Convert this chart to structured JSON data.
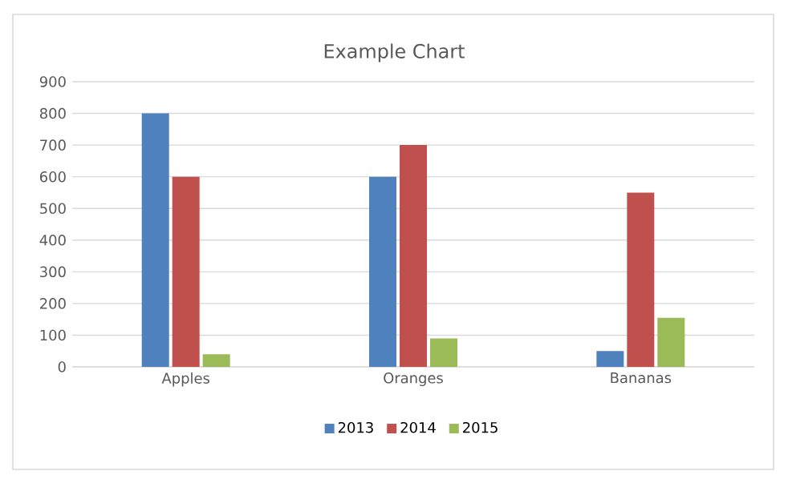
{
  "chart_data": {
    "type": "bar",
    "title": "Example Chart",
    "categories": [
      "Apples",
      "Oranges",
      "Bananas"
    ],
    "series": [
      {
        "name": "2013",
        "color": "#4f81bd",
        "values": [
          800,
          600,
          50
        ]
      },
      {
        "name": "2014",
        "color": "#c0504d",
        "values": [
          600,
          700,
          550
        ]
      },
      {
        "name": "2015",
        "color": "#9bbb59",
        "values": [
          40,
          90,
          155
        ]
      }
    ],
    "ylim": [
      0,
      900
    ],
    "yticks": [
      0,
      100,
      200,
      300,
      400,
      500,
      600,
      700,
      800,
      900
    ],
    "grid": "y",
    "legend": "bottom"
  }
}
